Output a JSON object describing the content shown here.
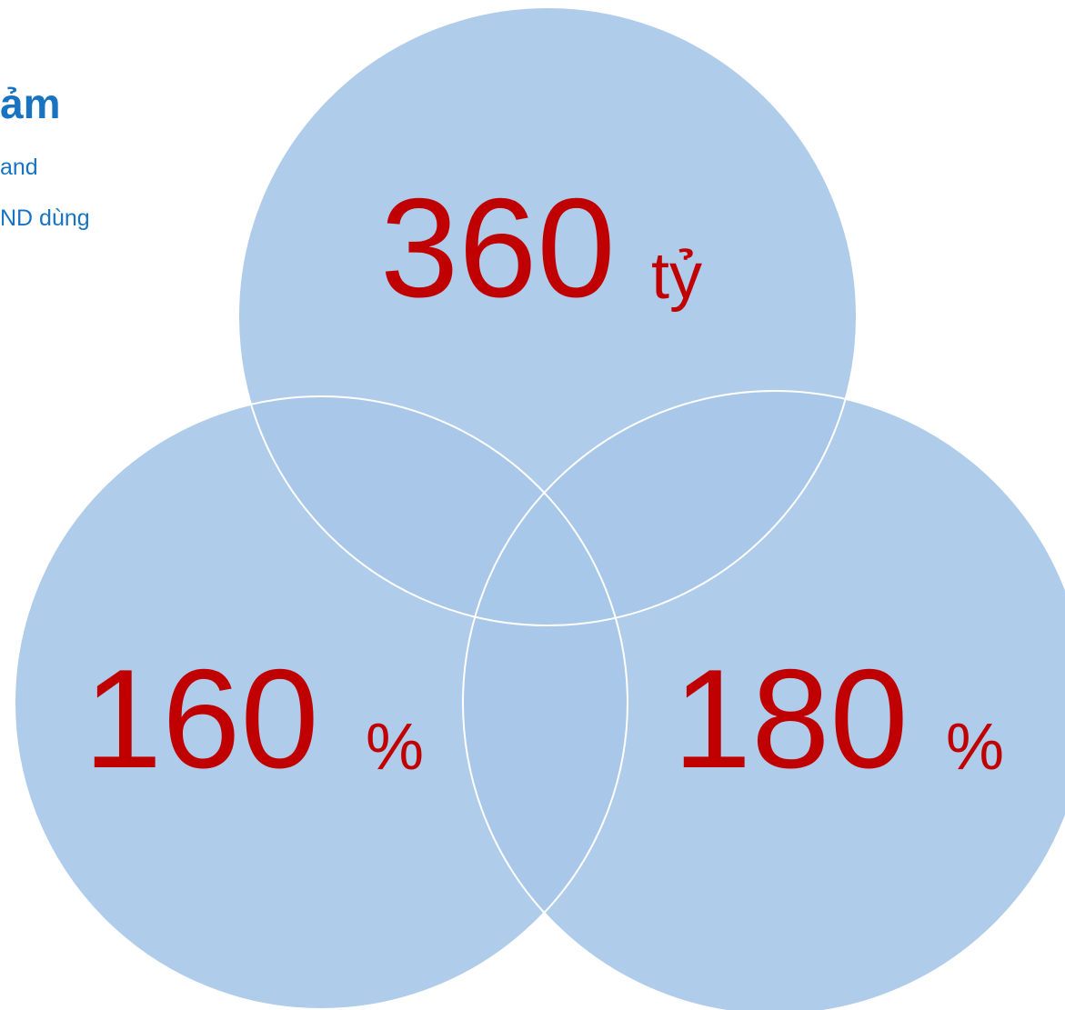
{
  "partial_text": {
    "heading": "ảm",
    "line_1": "and",
    "line_2": "ND dùng"
  },
  "colors": {
    "circle_fill": "#a8c8e8",
    "circle_edge": "#ffffff",
    "value_text": "#c00000",
    "heading_text": "#1874c1"
  },
  "venn": {
    "top": {
      "value": "360",
      "unit": "tỷ"
    },
    "left": {
      "value": "160",
      "unit": "%"
    },
    "right": {
      "value": "180",
      "unit": "%"
    }
  }
}
